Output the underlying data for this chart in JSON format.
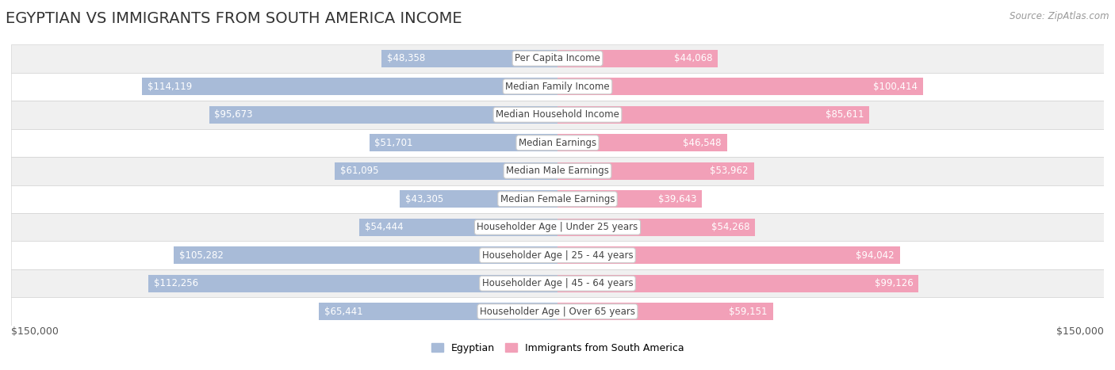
{
  "title": "EGYPTIAN VS IMMIGRANTS FROM SOUTH AMERICA INCOME",
  "source": "Source: ZipAtlas.com",
  "categories": [
    "Per Capita Income",
    "Median Family Income",
    "Median Household Income",
    "Median Earnings",
    "Median Male Earnings",
    "Median Female Earnings",
    "Householder Age | Under 25 years",
    "Householder Age | 25 - 44 years",
    "Householder Age | 45 - 64 years",
    "Householder Age | Over 65 years"
  ],
  "egyptian_values": [
    48358,
    114119,
    95673,
    51701,
    61095,
    43305,
    54444,
    105282,
    112256,
    65441
  ],
  "immigrant_values": [
    44068,
    100414,
    85611,
    46548,
    53962,
    39643,
    54268,
    94042,
    99126,
    59151
  ],
  "egyptian_color": "#a8bbd8",
  "immigrant_color": "#f2a0b8",
  "egyptian_label": "Egyptian",
  "immigrant_label": "Immigrants from South America",
  "row_bg_colors": [
    "#f0f0f0",
    "#ffffff",
    "#f0f0f0",
    "#ffffff",
    "#f0f0f0",
    "#ffffff",
    "#f0f0f0",
    "#ffffff",
    "#f0f0f0",
    "#ffffff"
  ],
  "max_value": 150000,
  "label_color_outside": "#555555",
  "center_label_color": "#444444",
  "title_fontsize": 14,
  "source_fontsize": 8.5,
  "value_fontsize": 8.5,
  "category_fontsize": 8.5,
  "legend_fontsize": 9,
  "axis_label_fontsize": 9,
  "inside_label_threshold": 30000,
  "inside_label_color": "#ffffff",
  "outside_label_color": "#555555"
}
